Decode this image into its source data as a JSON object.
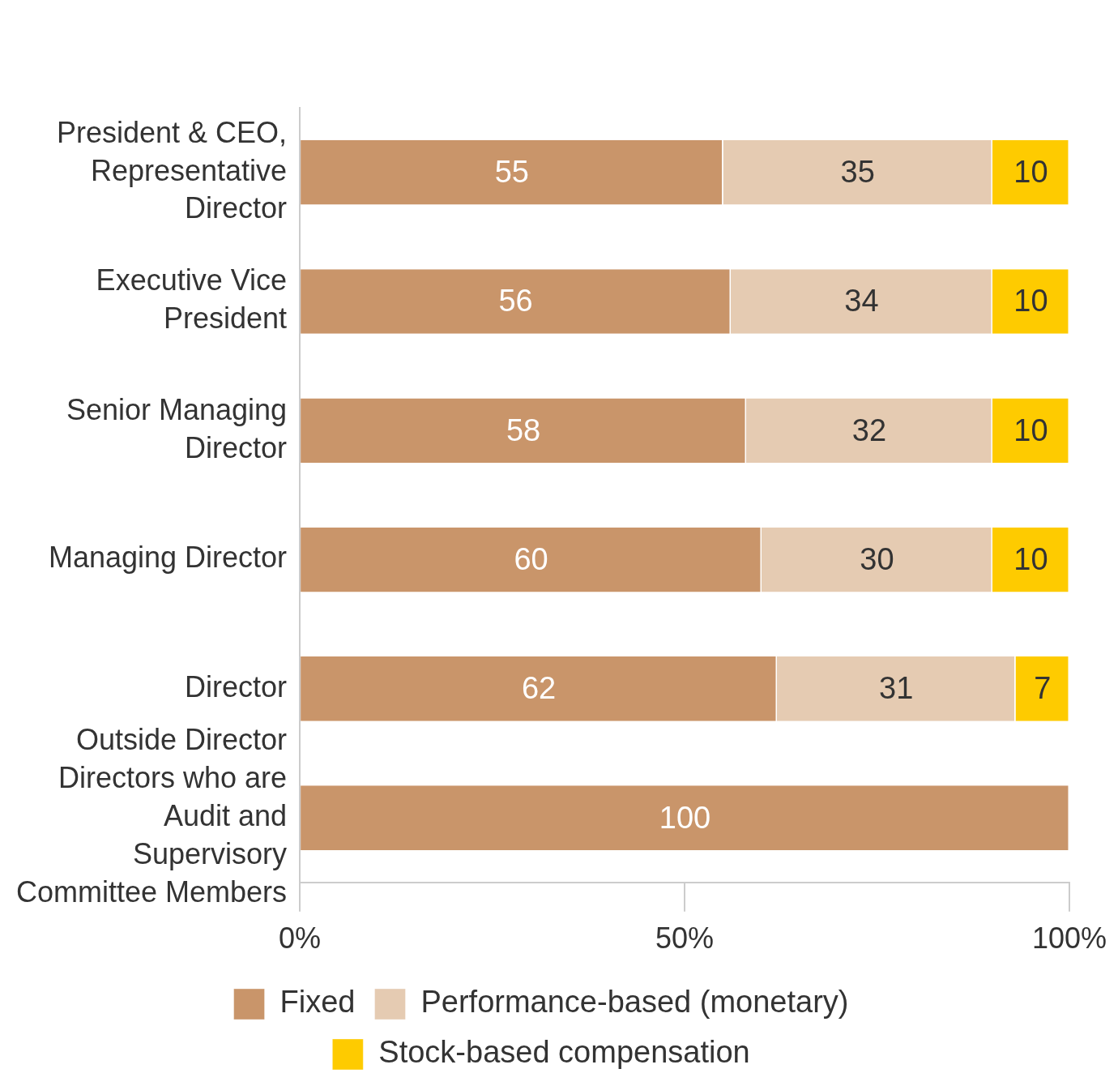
{
  "chart_data": {
    "type": "bar",
    "orientation": "horizontal",
    "stacked": true,
    "data_labels": true,
    "grid": false,
    "legend": "bottom",
    "categories": [
      "President & CEO, Representative Director",
      "Executive Vice President",
      "Senior Managing Director",
      "Managing Director",
      "Director",
      "Outside Director Directors who are Audit and Supervisory Committee Members"
    ],
    "series": [
      {
        "name": "Fixed",
        "color": "#c9956a",
        "values": [
          55,
          56,
          58,
          60,
          62,
          100
        ]
      },
      {
        "name": "Performance-based (monetary)",
        "color": "#e5cbb2",
        "values": [
          35,
          34,
          32,
          30,
          31,
          null
        ]
      },
      {
        "name": "Stock-based compensation",
        "color": "#fecb00",
        "values": [
          10,
          10,
          10,
          10,
          7,
          null
        ]
      }
    ],
    "xlim": [
      0,
      100
    ],
    "xticks": [
      {
        "value": 0,
        "label": "0%"
      },
      {
        "value": 50,
        "label": "50%"
      },
      {
        "value": 100,
        "label": "100%"
      }
    ]
  }
}
